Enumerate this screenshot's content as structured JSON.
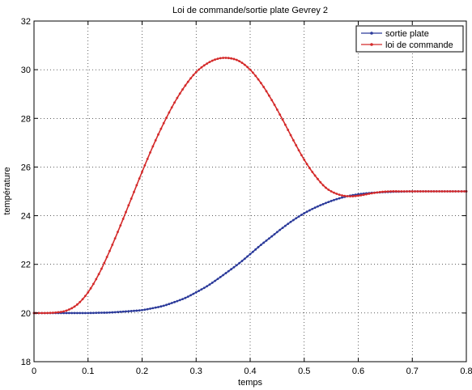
{
  "chart_data": {
    "type": "line",
    "title": "Loi de commande/sortie plate Gevrey 2",
    "xlabel": "temps",
    "ylabel": "température",
    "xlim": [
      0,
      0.8
    ],
    "ylim": [
      18,
      32
    ],
    "xticks": [
      0,
      0.1,
      0.2,
      0.3,
      0.4,
      0.5,
      0.6,
      0.7,
      0.8
    ],
    "xtick_labels": [
      "0",
      "0.1",
      "0.2",
      "0.3",
      "0.4",
      "0.5",
      "0.6",
      "0.7",
      "0.8"
    ],
    "yticks": [
      18,
      20,
      22,
      24,
      26,
      28,
      30,
      32
    ],
    "ytick_labels": [
      "18",
      "20",
      "22",
      "24",
      "26",
      "28",
      "30",
      "32"
    ],
    "grid": true,
    "legend_position": "top-right",
    "series": [
      {
        "name": "sortie plate",
        "color": "#2b3a9a",
        "x": [
          0,
          0.02,
          0.04,
          0.06,
          0.08,
          0.1,
          0.12,
          0.14,
          0.16,
          0.18,
          0.2,
          0.22,
          0.24,
          0.26,
          0.28,
          0.3,
          0.32,
          0.34,
          0.36,
          0.38,
          0.4,
          0.42,
          0.44,
          0.46,
          0.48,
          0.5,
          0.52,
          0.54,
          0.56,
          0.58,
          0.6,
          0.62,
          0.64,
          0.66,
          0.68,
          0.7,
          0.72,
          0.74,
          0.76,
          0.78,
          0.8
        ],
        "values": [
          20,
          20,
          20,
          20,
          20,
          20.0,
          20.01,
          20.02,
          20.05,
          20.08,
          20.12,
          20.2,
          20.3,
          20.45,
          20.62,
          20.85,
          21.1,
          21.4,
          21.72,
          22.05,
          22.42,
          22.8,
          23.15,
          23.5,
          23.82,
          24.1,
          24.33,
          24.52,
          24.68,
          24.8,
          24.88,
          24.93,
          24.96,
          24.98,
          24.99,
          25,
          25,
          25,
          25,
          25,
          25
        ]
      },
      {
        "name": "loi de commande",
        "color": "#d42a2a",
        "x": [
          0,
          0.02,
          0.04,
          0.06,
          0.08,
          0.1,
          0.12,
          0.14,
          0.16,
          0.18,
          0.2,
          0.22,
          0.24,
          0.26,
          0.28,
          0.3,
          0.32,
          0.34,
          0.36,
          0.38,
          0.4,
          0.42,
          0.44,
          0.46,
          0.48,
          0.5,
          0.52,
          0.54,
          0.56,
          0.58,
          0.6,
          0.62,
          0.64,
          0.66,
          0.68,
          0.7,
          0.72,
          0.74,
          0.76,
          0.78,
          0.8
        ],
        "values": [
          20,
          20,
          20.02,
          20.1,
          20.35,
          20.85,
          21.6,
          22.55,
          23.6,
          24.7,
          25.8,
          26.85,
          27.8,
          28.65,
          29.35,
          29.9,
          30.25,
          30.45,
          30.48,
          30.35,
          30.0,
          29.45,
          28.75,
          27.95,
          27.1,
          26.3,
          25.65,
          25.15,
          24.9,
          24.8,
          24.82,
          24.9,
          24.97,
          25.0,
          25.0,
          25.0,
          25.0,
          25.0,
          25.0,
          25.0,
          25.0
        ]
      }
    ]
  }
}
